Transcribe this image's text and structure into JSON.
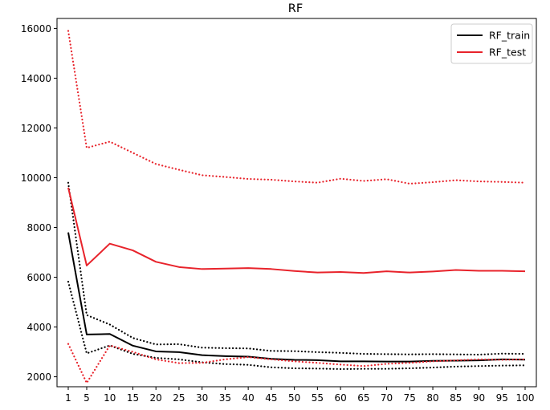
{
  "chart_data": {
    "type": "line",
    "title": "RF",
    "xlabel": "",
    "ylabel": "",
    "x": [
      1,
      5,
      10,
      15,
      20,
      25,
      30,
      35,
      40,
      45,
      50,
      55,
      60,
      65,
      70,
      75,
      80,
      85,
      90,
      95,
      100
    ],
    "x_ticks": [
      1,
      5,
      10,
      15,
      20,
      25,
      30,
      35,
      40,
      45,
      50,
      55,
      60,
      65,
      70,
      75,
      80,
      85,
      90,
      95,
      100
    ],
    "y_ticks": [
      2000,
      4000,
      6000,
      8000,
      10000,
      12000,
      14000,
      16000
    ],
    "ylim": [
      1600,
      16400
    ],
    "grid": false,
    "legend_position": "top-right",
    "legend": [
      {
        "label": "RF_train",
        "color": "#000000"
      },
      {
        "label": "RF_test",
        "color": "#e8232b"
      }
    ],
    "series": [
      {
        "name": "RF_train",
        "role": "mean",
        "color": "#000000",
        "style": "solid",
        "values": [
          7800,
          3700,
          3720,
          3250,
          3020,
          2990,
          2870,
          2830,
          2810,
          2720,
          2680,
          2670,
          2620,
          2620,
          2610,
          2610,
          2640,
          2650,
          2660,
          2700,
          2690
        ]
      },
      {
        "role": "upper band",
        "color": "#000000",
        "style": "dotted",
        "values": [
          9800,
          4480,
          4100,
          3560,
          3300,
          3310,
          3170,
          3150,
          3140,
          3040,
          3030,
          2990,
          2960,
          2920,
          2910,
          2900,
          2910,
          2900,
          2890,
          2930,
          2920
        ]
      },
      {
        "role": "lower band",
        "color": "#000000",
        "style": "dotted",
        "values": [
          5820,
          2940,
          3260,
          2920,
          2760,
          2700,
          2580,
          2510,
          2480,
          2380,
          2340,
          2330,
          2310,
          2320,
          2320,
          2340,
          2370,
          2410,
          2430,
          2450,
          2460
        ]
      },
      {
        "name": "RF_test",
        "role": "mean",
        "color": "#e8232b",
        "style": "solid",
        "values": [
          9600,
          6470,
          7350,
          7080,
          6620,
          6410,
          6330,
          6350,
          6370,
          6330,
          6250,
          6190,
          6210,
          6170,
          6240,
          6190,
          6230,
          6290,
          6260,
          6260,
          6240
        ]
      },
      {
        "role": "upper band",
        "color": "#e8232b",
        "style": "dotted",
        "values": [
          15900,
          11200,
          11450,
          11000,
          10550,
          10320,
          10100,
          10030,
          9950,
          9920,
          9850,
          9800,
          9960,
          9870,
          9940,
          9760,
          9820,
          9900,
          9850,
          9830,
          9800
        ]
      },
      {
        "role": "lower band",
        "color": "#e8232b",
        "style": "dotted",
        "values": [
          3320,
          1750,
          3260,
          3000,
          2700,
          2550,
          2560,
          2700,
          2790,
          2700,
          2620,
          2560,
          2490,
          2430,
          2520,
          2560,
          2620,
          2660,
          2700,
          2680,
          2700
        ]
      }
    ]
  }
}
